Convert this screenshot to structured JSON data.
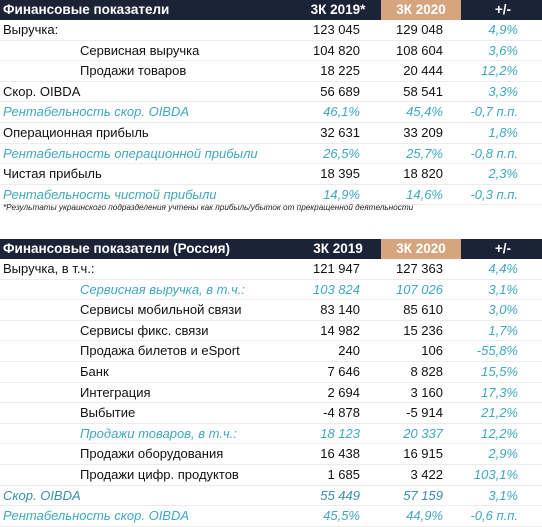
{
  "table1": {
    "header": {
      "title": "Финансовые показатели",
      "col1": "3К 2019*",
      "col2": "3К 2020",
      "col3": "+/-"
    },
    "rows": [
      {
        "label": "Выручка:",
        "v1": "123 045",
        "v2": "129 048",
        "d": "4,9%",
        "style": "",
        "indent": false
      },
      {
        "label": "Сервисная выручка",
        "v1": "104 820",
        "v2": "108 604",
        "d": "3,6%",
        "style": "",
        "indent": true
      },
      {
        "label": "Продажи товаров",
        "v1": "18 225",
        "v2": "20 444",
        "d": "12,2%",
        "style": "",
        "indent": true
      },
      {
        "label": "Скор. OIBDA",
        "v1": "56 689",
        "v2": "58 541",
        "d": "3,3%",
        "style": "",
        "indent": false
      },
      {
        "label": "Рентабельность скор. OIBDA",
        "v1": "46,1%",
        "v2": "45,4%",
        "d": "-0,7 п.п.",
        "style": "it",
        "indent": false
      },
      {
        "label": "Операционная прибыль",
        "v1": "32 631",
        "v2": "33 209",
        "d": "1,8%",
        "style": "",
        "indent": false
      },
      {
        "label": "Рентабельность операционной прибыли",
        "v1": "26,5%",
        "v2": "25,7%",
        "d": "-0,8 п.п.",
        "style": "it",
        "indent": false
      },
      {
        "label": "Чистая прибыль",
        "v1": "18 395",
        "v2": "18 820",
        "d": "2,3%",
        "style": "",
        "indent": false
      },
      {
        "label": "Рентабельность чистой прибыли",
        "v1": "14,9%",
        "v2": "14,6%",
        "d": "-0,3 п.п.",
        "style": "it",
        "indent": false
      }
    ],
    "note": "*Результаты украинского подразделения учтены как прибыль/убыток от прекращенной деятельности"
  },
  "table2": {
    "header": {
      "title": "Финансовые показатели (Россия)",
      "col1": "3К 2019",
      "col2": "3К 2020",
      "col3": "+/-"
    },
    "rows": [
      {
        "label": "Выручка, в т.ч.:",
        "v1": "121 947",
        "v2": "127 363",
        "d": "4,4%",
        "style": "",
        "indent": false
      },
      {
        "label": "Сервисная выручка, в т.ч.:",
        "v1": "103 824",
        "v2": "107 026",
        "d": "3,1%",
        "style": "it",
        "indent": true
      },
      {
        "label": "Сервисы мобильной связи",
        "v1": "83 140",
        "v2": "85 610",
        "d": "3,0%",
        "style": "",
        "indent": true
      },
      {
        "label": "Сервисы фикс. связи",
        "v1": "14 982",
        "v2": "15 236",
        "d": "1,7%",
        "style": "",
        "indent": true
      },
      {
        "label": "Продажа билетов и eSport",
        "v1": "240",
        "v2": "106",
        "d": "-55,8%",
        "style": "",
        "indent": true
      },
      {
        "label": "Банк",
        "v1": "7 646",
        "v2": "8 828",
        "d": "15,5%",
        "style": "",
        "indent": true
      },
      {
        "label": "Интеграция",
        "v1": "2 694",
        "v2": "3 160",
        "d": "17,3%",
        "style": "",
        "indent": true
      },
      {
        "label": "Выбытие",
        "v1": "-4 878",
        "v2": "-5 914",
        "d": "21,2%",
        "style": "",
        "indent": true
      },
      {
        "label": "Продажи товаров, в т.ч.:",
        "v1": "18 123",
        "v2": "20 337",
        "d": "12,2%",
        "style": "it",
        "indent": true
      },
      {
        "label": "Продажи оборудования",
        "v1": "16 438",
        "v2": "16 915",
        "d": "2,9%",
        "style": "",
        "indent": true
      },
      {
        "label": "Продажи цифр. продуктов",
        "v1": "1 685",
        "v2": "3 422",
        "d": "103,1%",
        "style": "",
        "indent": true
      },
      {
        "label": "Скор. OIBDA",
        "v1": "55 449",
        "v2": "57 159",
        "d": "3,1%",
        "style": "it2",
        "indent": false
      },
      {
        "label": "Рентабельность скор. OIBDA",
        "v1": "45,5%",
        "v2": "44,9%",
        "d": "-0,6 п.п.",
        "style": "it",
        "indent": false
      }
    ]
  }
}
